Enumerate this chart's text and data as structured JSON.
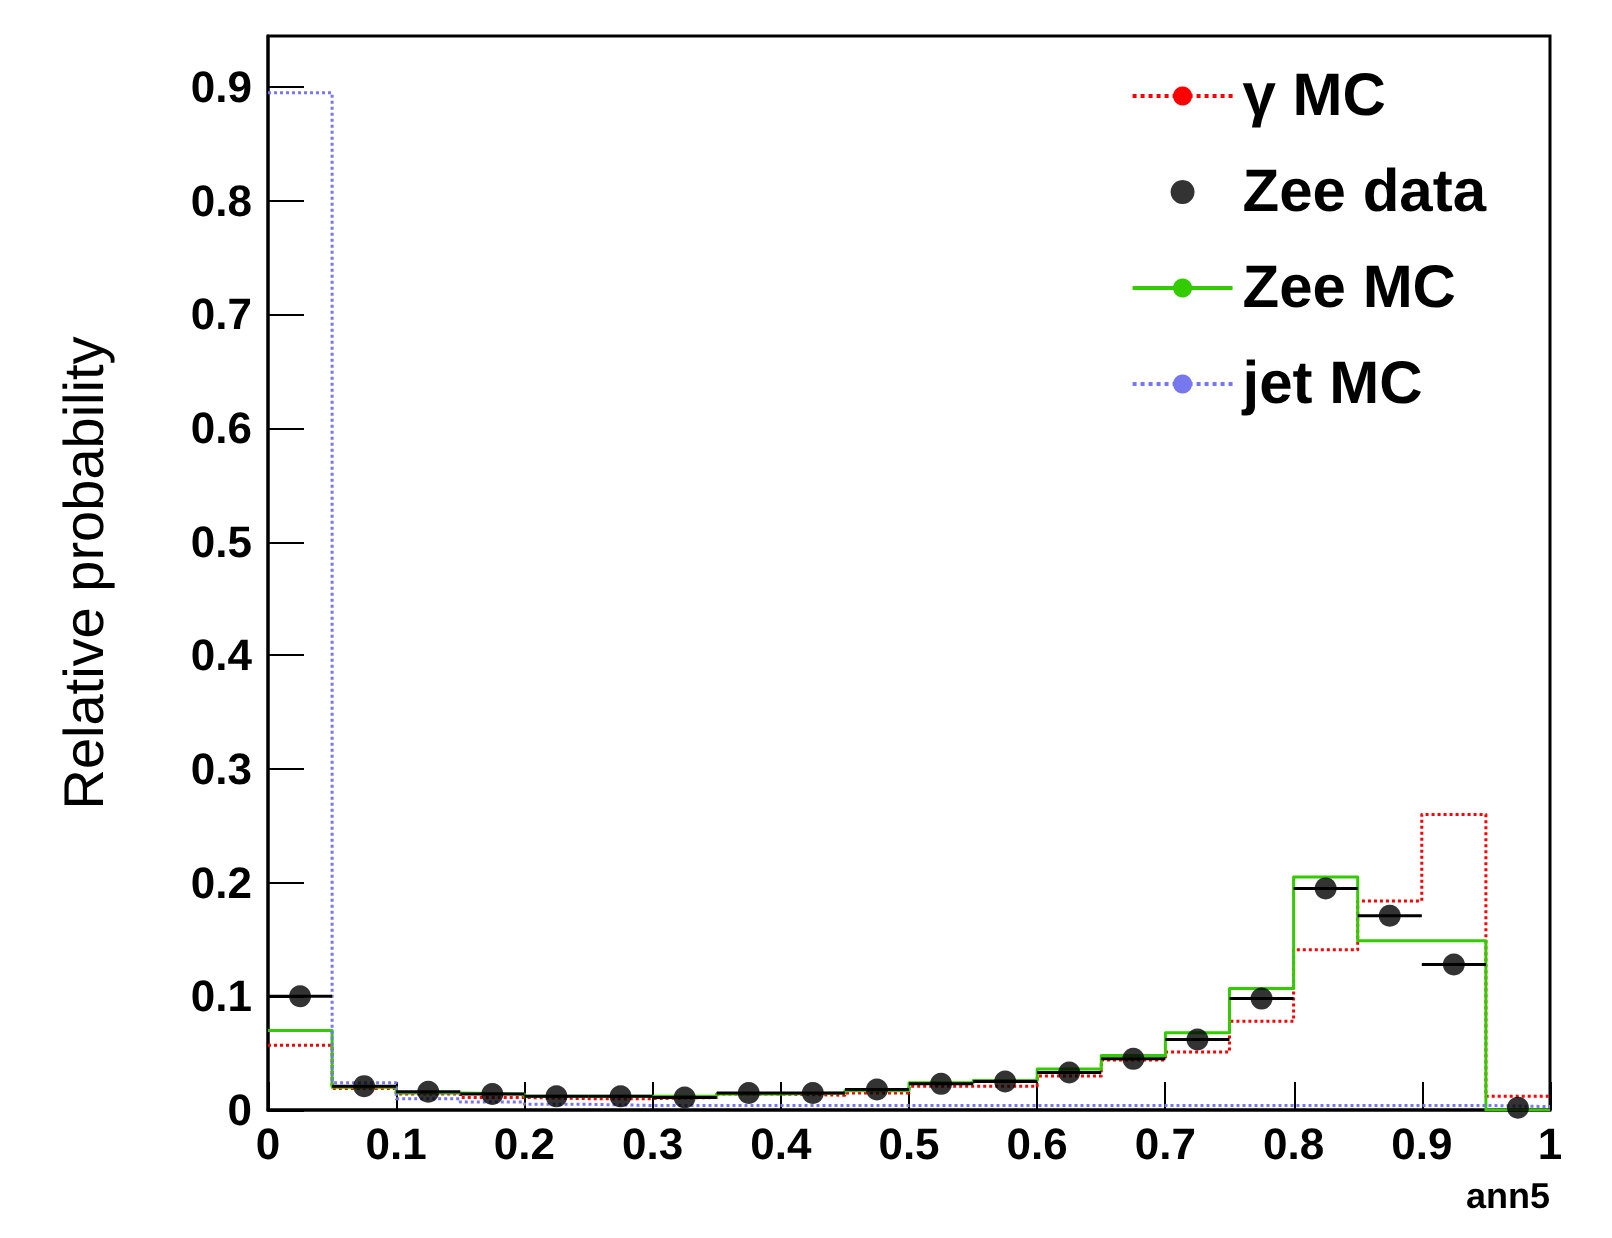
{
  "chart_data": {
    "type": "histogram",
    "xlabel": "ann5",
    "ylabel": "Relative probability",
    "bins": [
      0,
      0.05,
      0.1,
      0.15,
      0.2,
      0.25,
      0.3,
      0.35,
      0.4,
      0.45,
      0.5,
      0.55,
      0.6,
      0.65,
      0.7,
      0.75,
      0.8,
      0.85,
      0.9,
      0.95,
      1
    ],
    "xlim": [
      0,
      1
    ],
    "ylim": [
      0,
      0.945
    ],
    "xticks": [
      0,
      0.1,
      0.2,
      0.3,
      0.4,
      0.5,
      0.6,
      0.7,
      0.8,
      0.9,
      1
    ],
    "yticks": [
      0,
      0.1,
      0.2,
      0.3,
      0.4,
      0.5,
      0.6,
      0.7,
      0.8,
      0.9
    ],
    "legend": "top right",
    "grid": false,
    "series": [
      {
        "name": "γ MC",
        "color": "#ff0000",
        "line_style": "dotted",
        "values": [
          0.057,
          0.019,
          0.014,
          0.011,
          0.01,
          0.01,
          0.011,
          0.014,
          0.013,
          0.015,
          0.021,
          0.021,
          0.03,
          0.044,
          0.051,
          0.078,
          0.141,
          0.184,
          0.26,
          0.012
        ]
      },
      {
        "type": "scatter",
        "name": "Zee data",
        "color": "#000000",
        "marker": "circle",
        "x": [
          0.025,
          0.075,
          0.125,
          0.175,
          0.225,
          0.275,
          0.325,
          0.375,
          0.425,
          0.475,
          0.525,
          0.575,
          0.625,
          0.675,
          0.725,
          0.775,
          0.825,
          0.875,
          0.925,
          0.975
        ],
        "values": [
          0.1,
          0.021,
          0.016,
          0.014,
          0.012,
          0.012,
          0.011,
          0.015,
          0.015,
          0.018,
          0.023,
          0.025,
          0.033,
          0.045,
          0.062,
          0.098,
          0.195,
          0.171,
          0.128,
          0.002
        ],
        "xerrors": [
          0.025,
          0.025,
          0.025,
          0.025,
          0.025,
          0.025,
          0.025,
          0.025,
          0.025,
          0.025,
          0.025,
          0.025,
          0.025,
          0.025,
          0.025,
          0.025,
          0.025,
          0.025,
          0.025,
          null
        ]
      },
      {
        "name": "Zee MC",
        "color": "#33cc00",
        "line_style": "solid",
        "values": [
          0.07,
          0.02,
          0.015,
          0.014,
          0.012,
          0.012,
          0.012,
          0.014,
          0.015,
          0.017,
          0.024,
          0.026,
          0.036,
          0.048,
          0.068,
          0.107,
          0.205,
          0.149,
          0.149,
          0.0
        ]
      },
      {
        "name": "jet MC",
        "color": "#7777ee",
        "line_style": "dotted",
        "values": [
          0.895,
          0.024,
          0.01,
          0.007,
          0.005,
          0.004,
          0.004,
          0.004,
          0.004,
          0.004,
          0.004,
          0.004,
          0.004,
          0.004,
          0.004,
          0.004,
          0.004,
          0.004,
          0.004,
          0.003
        ]
      }
    ]
  }
}
